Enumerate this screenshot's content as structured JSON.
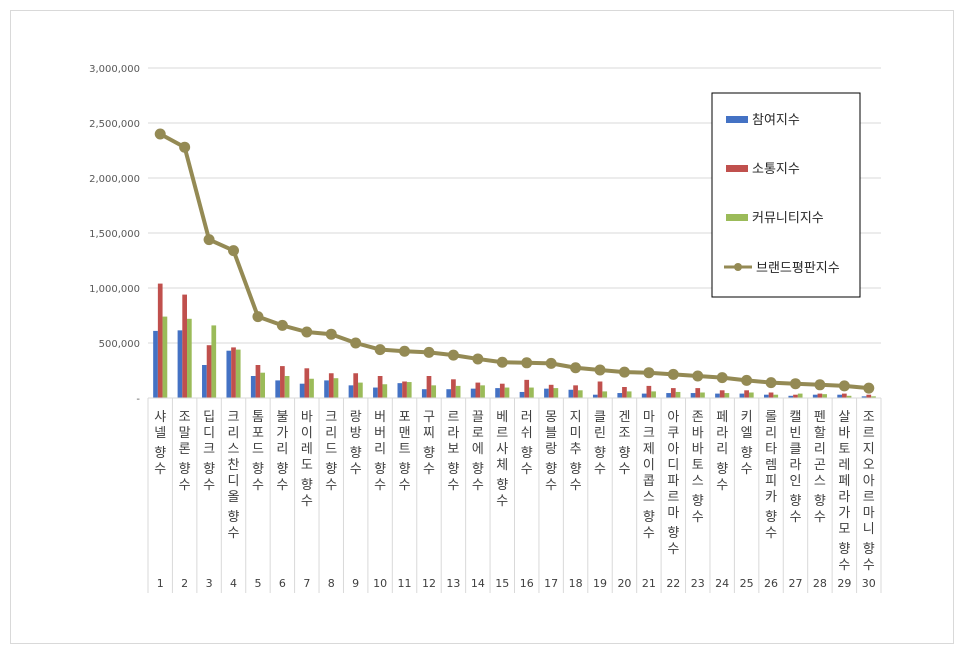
{
  "chart_data": {
    "type": "bar",
    "categories": [
      "샤넬 향수",
      "조말론 향수",
      "딥디크 향수",
      "크리스찬디올 향수",
      "톰포드 향수",
      "불가리 향수",
      "바이레도 향수",
      "크리드 향수",
      "랑방 향수",
      "버버리 향수",
      "포맨트 향수",
      "구찌 향수",
      "르라보 향수",
      "끌로에 향수",
      "베르사체 향수",
      "러쉬 향수",
      "몽블랑 향수",
      "지미추 향수",
      "클린 향수",
      "겐조 향수",
      "마크제이콥스 향수",
      "아쿠아디파르마 향수",
      "존바바토스 향수",
      "페라리 향수",
      "키엘 향수",
      "롤리타렘피카 향수",
      "캘빈클라인 향수",
      "펜할리곤스 향수",
      "살바토레페라가모 향수",
      "조르지오아르마니 향수"
    ],
    "ranks": [
      "1",
      "2",
      "3",
      "4",
      "5",
      "6",
      "7",
      "8",
      "9",
      "10",
      "11",
      "12",
      "13",
      "14",
      "15",
      "16",
      "17",
      "18",
      "19",
      "20",
      "21",
      "22",
      "23",
      "24",
      "25",
      "26",
      "27",
      "28",
      "29",
      "30"
    ],
    "series": [
      {
        "name": "참여지수",
        "type": "bar",
        "color": "#4472c4",
        "values": [
          610000,
          615000,
          300000,
          430000,
          200000,
          160000,
          130000,
          160000,
          115000,
          95000,
          135000,
          80000,
          80000,
          85000,
          90000,
          55000,
          85000,
          75000,
          30000,
          45000,
          40000,
          45000,
          45000,
          40000,
          40000,
          30000,
          20000,
          30000,
          30000,
          15000
        ]
      },
      {
        "name": "소통지수",
        "type": "bar",
        "color": "#c0504d",
        "values": [
          1040000,
          940000,
          480000,
          460000,
          300000,
          290000,
          270000,
          225000,
          225000,
          200000,
          150000,
          200000,
          170000,
          140000,
          130000,
          165000,
          120000,
          115000,
          150000,
          100000,
          110000,
          90000,
          90000,
          70000,
          70000,
          50000,
          30000,
          40000,
          40000,
          30000
        ]
      },
      {
        "name": "커뮤니티지수",
        "type": "bar",
        "color": "#9bbb59",
        "values": [
          740000,
          720000,
          660000,
          440000,
          230000,
          200000,
          175000,
          180000,
          140000,
          125000,
          145000,
          115000,
          110000,
          115000,
          95000,
          95000,
          90000,
          70000,
          60000,
          60000,
          60000,
          55000,
          50000,
          45000,
          50000,
          30000,
          40000,
          35000,
          20000,
          15000
        ]
      },
      {
        "name": "브랜드평판지수",
        "type": "line",
        "color": "#948a54",
        "values": [
          2400000,
          2280000,
          1440000,
          1340000,
          740000,
          660000,
          600000,
          580000,
          500000,
          440000,
          425000,
          415000,
          390000,
          355000,
          325000,
          320000,
          315000,
          275000,
          255000,
          235000,
          230000,
          215000,
          200000,
          185000,
          160000,
          140000,
          130000,
          120000,
          110000,
          90000
        ]
      }
    ],
    "y_ticks": [
      "-",
      "500,000",
      "1,000,000",
      "1,500,000",
      "2,000,000",
      "2,500,000",
      "3,000,000"
    ],
    "ylim": [
      0,
      3000000
    ],
    "legend_position": "top-right",
    "grid": true
  }
}
